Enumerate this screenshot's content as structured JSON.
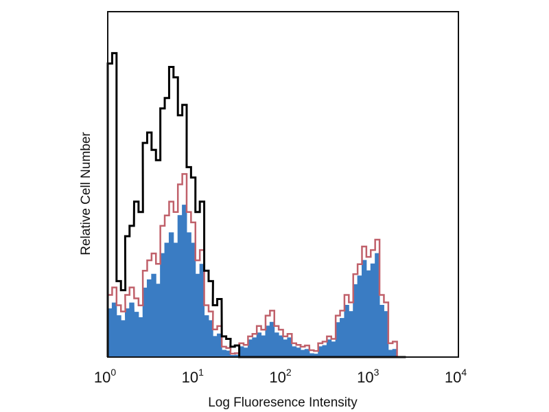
{
  "chart_data": {
    "type": "histogram",
    "title": "",
    "xlabel": "Log Fluoresence Intensity",
    "ylabel": "Relative Cell Number",
    "xscale": "log",
    "xlim": [
      1,
      10000
    ],
    "ylim": [
      0,
      100
    ],
    "grid": false,
    "legend": "none",
    "x_ticks": [
      {
        "base": "10",
        "exp": "0"
      },
      {
        "base": "10",
        "exp": "1"
      },
      {
        "base": "10",
        "exp": "2"
      },
      {
        "base": "10",
        "exp": "3"
      },
      {
        "base": "10",
        "exp": "4"
      }
    ],
    "x": [
      1,
      1.26,
      1.58,
      2.0,
      2.51,
      3.16,
      3.98,
      5.01,
      6.31,
      7.94,
      10,
      12.6,
      15.8,
      20,
      25.1,
      31.6,
      39.8,
      50.1,
      63.1,
      79.4,
      100,
      126,
      158,
      200,
      251,
      316,
      398,
      501,
      631,
      794,
      1000,
      1259,
      1585,
      1995
    ],
    "series": [
      {
        "style": "filled",
        "color": "#3a7cc3",
        "values": [
          14,
          12,
          14,
          13,
          20,
          24,
          30,
          36,
          41,
          36,
          24,
          12,
          6,
          2,
          0.5,
          3,
          5,
          7,
          9,
          7,
          5,
          3,
          2,
          1,
          3,
          5,
          10,
          15,
          21,
          28,
          27,
          15,
          2,
          0
        ]
      },
      {
        "style": "outline",
        "color": "#c0606a",
        "values": [
          18,
          15,
          18,
          17,
          25,
          30,
          38,
          45,
          50,
          42,
          28,
          15,
          8,
          3,
          1,
          4,
          6,
          9,
          12,
          9,
          6,
          4,
          3,
          2,
          4,
          6,
          12,
          18,
          24,
          32,
          31,
          18,
          4,
          0
        ]
      },
      {
        "style": "outline",
        "color": "#000000",
        "values": [
          85,
          22,
          35,
          45,
          62,
          60,
          72,
          84,
          70,
          55,
          42,
          25,
          15,
          6,
          3,
          0,
          0,
          0,
          0,
          0,
          0,
          0,
          0,
          0,
          0,
          0,
          0,
          0,
          0,
          0,
          0,
          0,
          0,
          0
        ]
      }
    ]
  }
}
